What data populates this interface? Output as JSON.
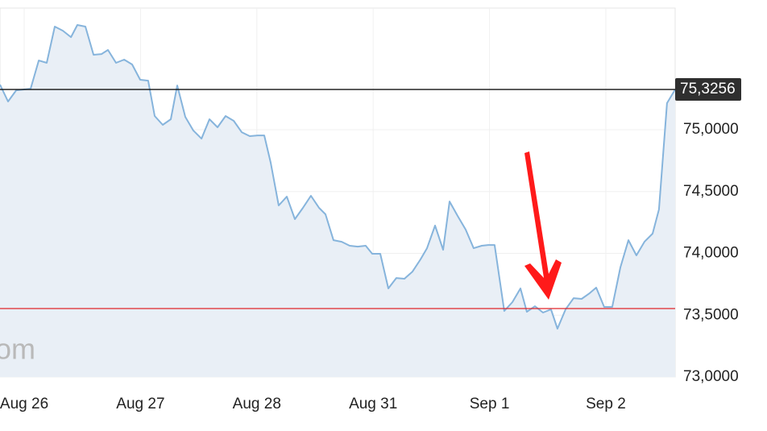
{
  "chart_data": {
    "type": "area",
    "x": [
      -0.208,
      -0.139,
      -0.069,
      0.055,
      0.125,
      0.194,
      0.263,
      0.332,
      0.402,
      0.457,
      0.526,
      0.596,
      0.665,
      0.72,
      0.789,
      0.859,
      0.928,
      0.997,
      1.066,
      1.122,
      1.191,
      1.26,
      1.316,
      1.385,
      1.454,
      1.524,
      1.593,
      1.662,
      1.731,
      1.801,
      1.87,
      1.939,
      2.008,
      2.064,
      2.119,
      2.188,
      2.258,
      2.327,
      2.396,
      2.465,
      2.535,
      2.59,
      2.659,
      2.729,
      2.798,
      2.867,
      2.936,
      2.992,
      3.061,
      3.13,
      3.199,
      3.269,
      3.338,
      3.407,
      3.463,
      3.532,
      3.601,
      3.657,
      3.726,
      3.795,
      3.864,
      3.934,
      3.989,
      4.044,
      4.127,
      4.197,
      4.266,
      4.321,
      4.391,
      4.46,
      4.529,
      4.584,
      4.654,
      4.723,
      4.792,
      4.861,
      4.917,
      4.986,
      5.055,
      5.125,
      5.194,
      5.263,
      5.332,
      5.402,
      5.457,
      5.526,
      5.596
    ],
    "series": [
      {
        "color": "#86b4dc",
        "fill": "#e9eff6",
        "values": [
          75.365,
          75.228,
          75.319,
          75.332,
          75.56,
          75.541,
          75.834,
          75.801,
          75.749,
          75.847,
          75.834,
          75.606,
          75.612,
          75.645,
          75.541,
          75.567,
          75.528,
          75.404,
          75.397,
          75.111,
          75.039,
          75.085,
          75.358,
          75.104,
          74.993,
          74.928,
          75.085,
          75.02,
          75.111,
          75.072,
          74.98,
          74.948,
          74.954,
          74.954,
          74.733,
          74.388,
          74.459,
          74.277,
          74.368,
          74.466,
          74.368,
          74.316,
          74.107,
          74.094,
          74.062,
          74.055,
          74.062,
          73.997,
          73.997,
          73.717,
          73.801,
          73.795,
          73.853,
          73.951,
          74.042,
          74.225,
          74.029,
          74.42,
          74.303,
          74.192,
          74.042,
          74.062,
          74.068,
          74.068,
          73.534,
          73.606,
          73.717,
          73.528,
          73.573,
          73.521,
          73.547,
          73.391,
          73.547,
          73.638,
          73.632,
          73.678,
          73.723,
          73.567,
          73.567,
          73.886,
          74.107,
          73.984,
          74.094,
          74.16,
          74.355,
          75.215,
          75.3256
        ]
      }
    ],
    "xlim": [
      -0.208,
      5.596
    ],
    "xticks": [
      {
        "value": 0,
        "label": "Aug 26"
      },
      {
        "value": 1,
        "label": "Aug 27"
      },
      {
        "value": 2,
        "label": "Aug 28"
      },
      {
        "value": 3,
        "label": "Aug 31"
      },
      {
        "value": 4,
        "label": "Sep 1"
      },
      {
        "value": 5,
        "label": "Sep 2"
      }
    ],
    "ylim": [
      73,
      75.984
    ],
    "yticks": [
      {
        "value": 73,
        "label": "73,0000"
      },
      {
        "value": 73.5,
        "label": "73,5000"
      },
      {
        "value": 74,
        "label": "74,0000"
      },
      {
        "value": 74.5,
        "label": "74,5000"
      },
      {
        "value": 75,
        "label": "75,0000"
      }
    ],
    "reference_lines": [
      {
        "value": 75.3256,
        "label": "75,3256",
        "color": "#111111"
      },
      {
        "value": 73.554,
        "color": "#e0262b"
      }
    ],
    "watermark": "om",
    "grid": true
  }
}
